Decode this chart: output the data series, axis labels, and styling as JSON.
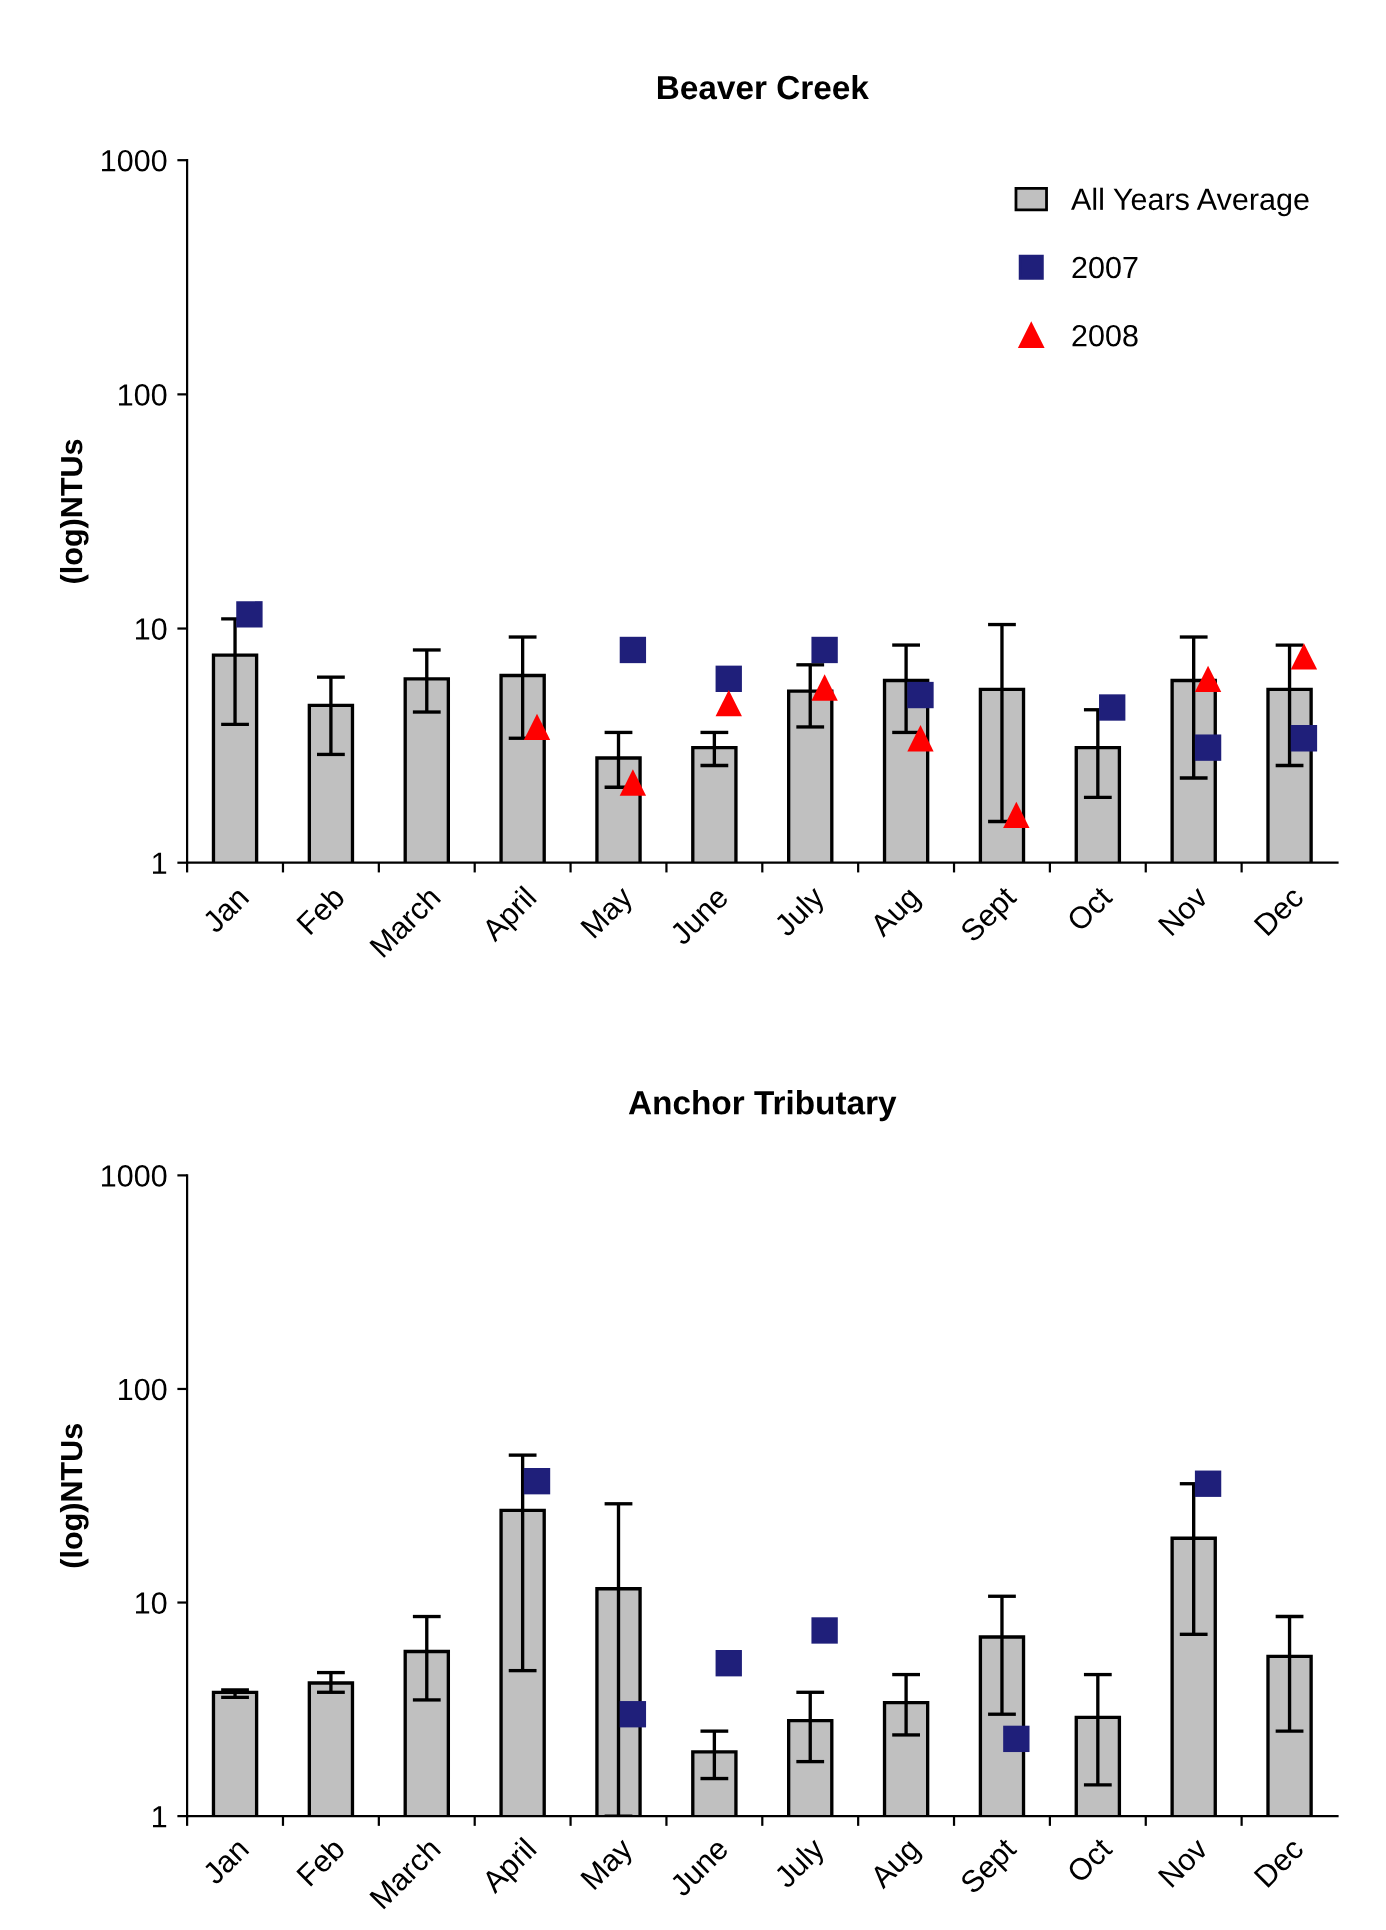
{
  "chart_data": [
    {
      "type": "bar",
      "title": "Beaver Creek",
      "ylabel": "(log)NTUs",
      "log": true,
      "ylim": [
        1,
        1000
      ],
      "yticks": [
        1,
        10,
        100,
        1000
      ],
      "grid": false,
      "legend": "top right",
      "categories": [
        "Jan",
        "Feb",
        "March",
        "April",
        "May",
        "June",
        "July",
        "Aug",
        "Sept",
        "Oct",
        "Nov",
        "Dec"
      ],
      "series": [
        {
          "name": "All Years Average",
          "color": "#c0c0c0",
          "values": [
            7.7,
            4.7,
            6.1,
            6.3,
            2.8,
            3.1,
            5.4,
            6.0,
            5.5,
            3.1,
            6.0,
            5.5
          ],
          "errors": [
            [
              3.9,
              11
            ],
            [
              2.9,
              6.2
            ],
            [
              4.4,
              8.1
            ],
            [
              3.4,
              9.2
            ],
            [
              2.1,
              3.6
            ],
            [
              2.6,
              3.6
            ],
            [
              3.8,
              7
            ],
            [
              3.6,
              8.5
            ],
            [
              1.5,
              10.4
            ],
            [
              1.9,
              4.5
            ],
            [
              2.3,
              9.2
            ],
            [
              2.6,
              8.5
            ]
          ]
        },
        {
          "name": "2007",
          "type": "scatter",
          "marker": "square",
          "color": "#1f1f7a",
          "x": [
            "Jan",
            "Feb",
            "March",
            "April",
            "May",
            "June",
            "July",
            "Aug",
            "Sept",
            "Oct",
            "Nov",
            "Dec"
          ],
          "values": [
            11.5,
            null,
            null,
            null,
            8.1,
            6.1,
            8.1,
            5.2,
            null,
            4.6,
            3.1,
            3.4
          ]
        },
        {
          "name": "2008",
          "type": "scatter",
          "marker": "triangle",
          "color": "#ff0000",
          "x": [
            "Jan",
            "Feb",
            "March",
            "April",
            "May",
            "June",
            "July",
            "Aug",
            "Sept",
            "Oct",
            "Nov",
            "Dec"
          ],
          "values": [
            null,
            null,
            null,
            3.8,
            2.2,
            4.8,
            5.6,
            3.4,
            1.6,
            null,
            6.1,
            7.6
          ]
        }
      ]
    },
    {
      "type": "bar",
      "title": "Anchor Tributary",
      "ylabel": "(log)NTUs",
      "log": true,
      "ylim": [
        1,
        1000
      ],
      "yticks": [
        1,
        10,
        100,
        1000
      ],
      "grid": false,
      "categories": [
        "Jan",
        "Feb",
        "March",
        "April",
        "May",
        "June",
        "July",
        "Aug",
        "Sept",
        "Oct",
        "Nov",
        "Dec"
      ],
      "series": [
        {
          "color": "#c0c0c0",
          "values": [
            3.8,
            4.2,
            5.9,
            27,
            11.6,
            2.0,
            2.8,
            3.4,
            6.9,
            2.9,
            20,
            5.6
          ],
          "errors": [
            [
              3.6,
              3.9
            ],
            [
              3.8,
              4.7
            ],
            [
              3.5,
              8.6
            ],
            [
              4.8,
              49
            ],
            [
              1,
              29
            ],
            [
              1.5,
              2.5
            ],
            [
              1.8,
              3.8
            ],
            [
              2.4,
              4.6
            ],
            [
              3.0,
              10.7
            ],
            [
              1.4,
              4.6
            ],
            [
              7.1,
              36
            ],
            [
              2.5,
              8.6
            ]
          ]
        },
        {
          "type": "scatter",
          "marker": "square",
          "color": "#1f1f7a",
          "x": [
            "Jan",
            "Feb",
            "March",
            "April",
            "May",
            "June",
            "July",
            "Aug",
            "Sept",
            "Oct",
            "Nov",
            "Dec"
          ],
          "values": [
            null,
            null,
            null,
            37,
            3.0,
            5.2,
            7.4,
            null,
            2.3,
            null,
            36,
            null
          ]
        }
      ]
    }
  ]
}
